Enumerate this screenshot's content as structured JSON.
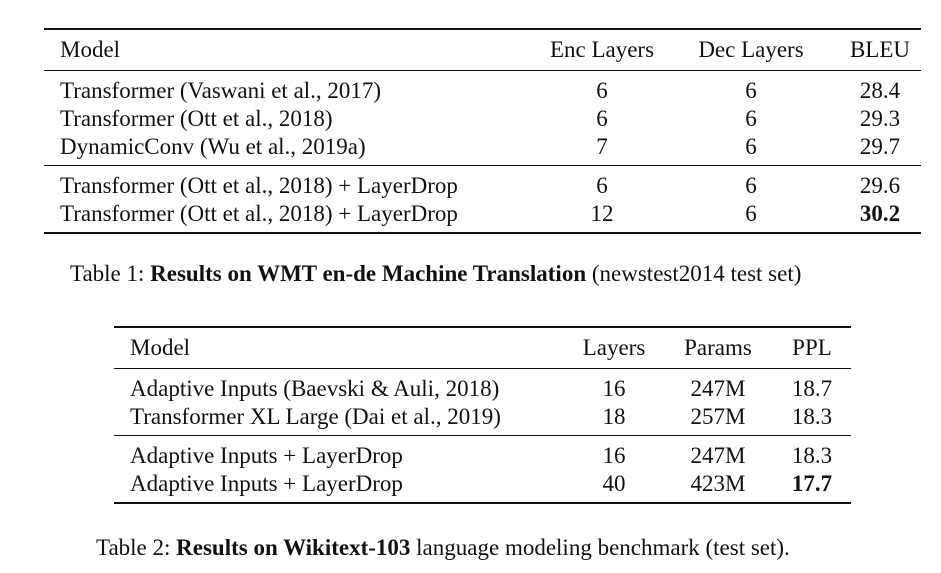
{
  "table1": {
    "headers": {
      "model": "Model",
      "enc": "Enc Layers",
      "dec": "Dec Layers",
      "bleu": "BLEU"
    },
    "rows": [
      {
        "model": "Transformer (Vaswani et al., 2017)",
        "enc": "6",
        "dec": "6",
        "bleu": "28.4"
      },
      {
        "model": "Transformer (Ott et al., 2018)",
        "enc": "6",
        "dec": "6",
        "bleu": "29.3"
      },
      {
        "model": "DynamicConv (Wu et al., 2019a)",
        "enc": "7",
        "dec": "6",
        "bleu": "29.7"
      },
      {
        "model": "Transformer (Ott et al., 2018) + LayerDrop",
        "enc": "6",
        "dec": "6",
        "bleu": "29.6"
      },
      {
        "model": "Transformer (Ott et al., 2018) + LayerDrop",
        "enc": "12",
        "dec": "6",
        "bleu": "30.2"
      }
    ],
    "caption": {
      "prefix": "Table 1: ",
      "bold": "Results on WMT en-de Machine Translation",
      "suffix": " (newstest2014 test set)"
    }
  },
  "table2": {
    "headers": {
      "model": "Model",
      "layers": "Layers",
      "params": "Params",
      "ppl": "PPL"
    },
    "rows": [
      {
        "model": "Adaptive Inputs (Baevski & Auli, 2018)",
        "layers": "16",
        "params": "247M",
        "ppl": "18.7"
      },
      {
        "model": "Transformer XL Large (Dai et al., 2019)",
        "layers": "18",
        "params": "257M",
        "ppl": "18.3"
      },
      {
        "model": "Adaptive Inputs + LayerDrop",
        "layers": "16",
        "params": "247M",
        "ppl": "18.3"
      },
      {
        "model": "Adaptive Inputs + LayerDrop",
        "layers": "40",
        "params": "423M",
        "ppl": "17.7"
      }
    ],
    "caption": {
      "prefix": "Table 2: ",
      "bold": "Results on Wikitext-103",
      "suffix": " language modeling benchmark (test set)."
    }
  }
}
